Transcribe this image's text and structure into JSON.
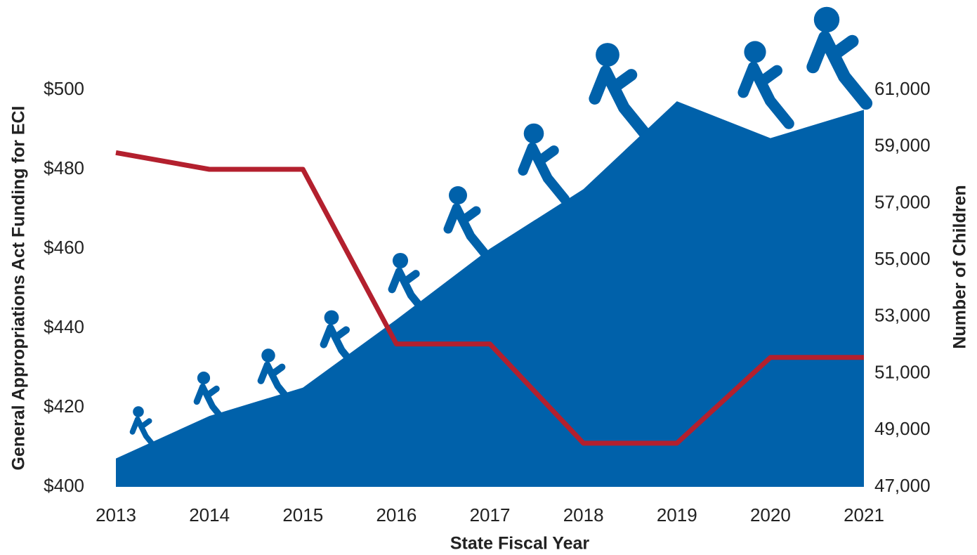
{
  "chart_data": {
    "type": "combo",
    "xlabel": "State Fiscal Year",
    "ylabel": "General Appropriations Act Funding for ECI",
    "y2label": "Number of Children",
    "categories": [
      "2013",
      "2014",
      "2015",
      "2016",
      "2017",
      "2018",
      "2019",
      "2020",
      "2021"
    ],
    "series": [
      {
        "type": "area",
        "axis": "y2",
        "color": "#0061aa",
        "values": [
          48000,
          49500,
          50500,
          52900,
          55400,
          57500,
          60600,
          59300,
          60300
        ]
      },
      {
        "type": "line",
        "axis": "y",
        "color": "#b3202e",
        "values": [
          484.2,
          480,
          480,
          436,
          436,
          411,
          411,
          432.6,
          432.6
        ]
      }
    ],
    "ylim": [
      400,
      500
    ],
    "yticks": [
      {
        "value": 400,
        "label": "$400"
      },
      {
        "value": 420,
        "label": "$420"
      },
      {
        "value": 440,
        "label": "$440"
      },
      {
        "value": 460,
        "label": "$460"
      },
      {
        "value": 480,
        "label": "$480"
      },
      {
        "value": 500,
        "label": "$500"
      }
    ],
    "y2lim": [
      47000,
      61000
    ],
    "y2ticks": [
      {
        "value": 47000,
        "label": "47,000"
      },
      {
        "value": 49000,
        "label": "49,000"
      },
      {
        "value": 51000,
        "label": "51,000"
      },
      {
        "value": 53000,
        "label": "53,000"
      },
      {
        "value": 55000,
        "label": "55,000"
      },
      {
        "value": 57000,
        "label": "57,000"
      },
      {
        "value": 59000,
        "label": "59,000"
      },
      {
        "value": 61000,
        "label": "61,000"
      }
    ],
    "grid": false
  }
}
